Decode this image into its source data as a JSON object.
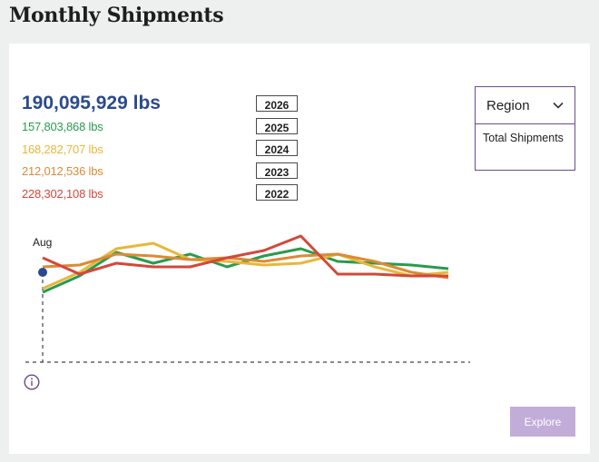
{
  "page": {
    "title": "Monthly Shipments"
  },
  "totals": {
    "main": {
      "value": "190,095,929 lbs",
      "color": "#2b4a8e"
    },
    "lines": [
      {
        "value": "157,803,868 lbs",
        "color": "#2a9a4e"
      },
      {
        "value": "168,282,707 lbs",
        "color": "#e8b73a"
      },
      {
        "value": "212,012,536 lbs",
        "color": "#dd8a34"
      },
      {
        "value": "228,302,108 lbs",
        "color": "#d2483a"
      }
    ]
  },
  "years": [
    "2026",
    "2025",
    "2024",
    "2023",
    "2022"
  ],
  "region": {
    "label": "Region",
    "icon": "chevron-down-icon",
    "options": [
      "Total Shipments"
    ]
  },
  "explore": {
    "label": "Explore",
    "color": "#c2add9"
  },
  "info": {
    "icon": "info-icon",
    "color": "#6a4b8d"
  },
  "chart_data": {
    "type": "line",
    "marker_label": "Aug",
    "current_point": {
      "series": "2026",
      "x": 0,
      "y": 40,
      "color": "#2b4a8e"
    },
    "x": [
      0,
      1,
      2,
      3,
      4,
      5,
      6,
      7,
      8,
      9,
      10,
      11
    ],
    "ylim": [
      0,
      80
    ],
    "grid": false,
    "series": [
      {
        "name": "2025",
        "color": "#2a9a4e",
        "values": [
          29,
          38,
          51,
          45,
          50,
          43,
          49,
          53,
          46,
          45,
          44,
          42
        ]
      },
      {
        "name": "2024",
        "color": "#e8b73a",
        "values": [
          31,
          40,
          53,
          56,
          47,
          46,
          44,
          45,
          50,
          43,
          38,
          40
        ]
      },
      {
        "name": "2023",
        "color": "#dd8a34",
        "values": [
          43,
          44,
          50,
          49,
          47,
          48,
          46,
          49,
          50,
          46,
          40,
          37
        ]
      },
      {
        "name": "2022",
        "color": "#d2483a",
        "values": [
          48,
          39,
          45,
          43,
          43,
          48,
          52,
          60,
          39,
          39,
          38,
          38
        ]
      }
    ]
  }
}
